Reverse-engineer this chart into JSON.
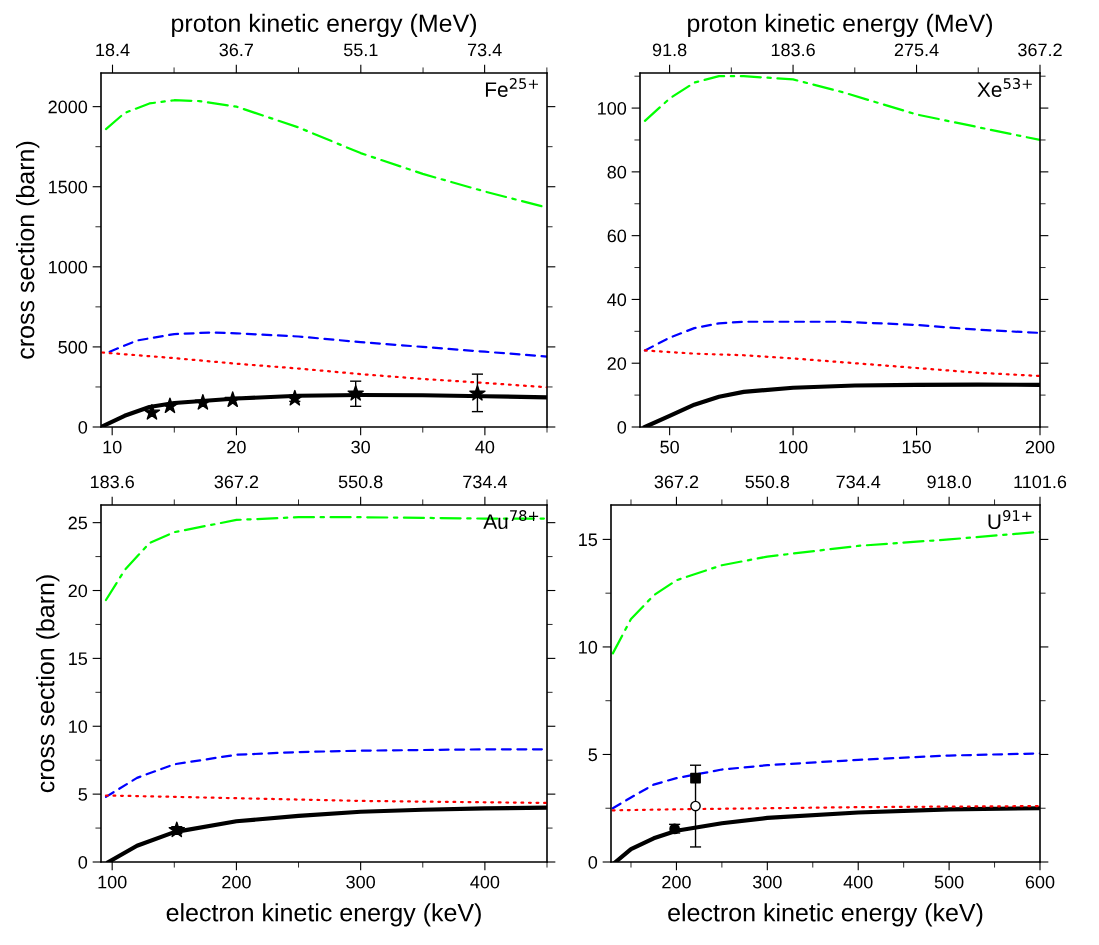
{
  "chart_data": [
    {
      "type": "line",
      "x2label": "proton kinetic energy (MeV)",
      "ylabel": "cross section (barn)",
      "annotations": [
        "Fe$^{25+}$"
      ],
      "xlim": [
        9.1,
        45
      ],
      "xticks": [
        10,
        {
          "value": 15,
          "label": null
        },
        20,
        {
          "value": 25,
          "label": null
        },
        30,
        {
          "value": 35,
          "label": null
        },
        40,
        {
          "value": 45,
          "label": null
        }
      ],
      "x2lim": [
        16.7,
        82.62
      ],
      "x2ticks": [
        18.4,
        {
          "value": 27.5,
          "label": null
        },
        36.7,
        {
          "value": 45.9,
          "label": null
        },
        55.1,
        {
          "value": 64.3,
          "label": null
        },
        73.4,
        {
          "value": 82.6,
          "label": null
        }
      ],
      "ylim": [
        0,
        2210
      ],
      "yticks": [
        0,
        {
          "value": 250,
          "label": null
        },
        500,
        {
          "value": 750,
          "label": null
        },
        1000,
        {
          "value": 1250,
          "label": null
        },
        1500,
        {
          "value": 1750,
          "label": null
        },
        2000
      ],
      "series": [
        {
          "color": "#00ff00",
          "line_style": "dashdot",
          "x": [
            9.5,
            11,
            13,
            15,
            17,
            20,
            25,
            30,
            35,
            40,
            45
          ],
          "values": [
            1860,
            1960,
            2020,
            2040,
            2035,
            2000,
            1870,
            1710,
            1580,
            1470,
            1370
          ]
        },
        {
          "color": "#0000ff",
          "line_style": "dashed",
          "x": [
            9.8,
            12,
            15,
            18,
            20,
            25,
            30,
            35,
            40,
            45
          ],
          "values": [
            470,
            540,
            580,
            590,
            585,
            565,
            530,
            500,
            470,
            440
          ]
        },
        {
          "color": "#ff0000",
          "line_style": "dotted",
          "x": [
            9.2,
            15,
            20,
            25,
            30,
            35,
            40,
            45
          ],
          "values": [
            465,
            430,
            395,
            365,
            330,
            300,
            275,
            248
          ]
        },
        {
          "color": "#000000",
          "line_style": "solid",
          "x": [
            9.1,
            11,
            13,
            15,
            20,
            25,
            30,
            35,
            40,
            45
          ],
          "values": [
            0,
            70,
            125,
            150,
            178,
            195,
            200,
            198,
            192,
            185
          ]
        },
        {
          "type": "scatter",
          "marker": "star",
          "color": "#000000",
          "x": [
            13.2,
            14.65,
            17.3,
            19.7,
            24.7,
            29.6,
            39.4
          ],
          "values": [
            90,
            131,
            152,
            169,
            178,
            209,
            209
          ],
          "errors": [
            null,
            null,
            null,
            null,
            [
              160,
              198
            ],
            [
              129,
              286
            ],
            [
              96,
              330
            ]
          ]
        }
      ]
    },
    {
      "type": "line",
      "x2label": "proton kinetic energy (MeV)",
      "annotations": [
        "Xe$^{53+}$"
      ],
      "xlim": [
        38,
        200
      ],
      "xticks": [
        50,
        {
          "value": 75,
          "label": null
        },
        100,
        {
          "value": 125,
          "label": null
        },
        150,
        {
          "value": 175,
          "label": null
        },
        200
      ],
      "x2lim": [
        69.8,
        367.2
      ],
      "x2ticks": [
        91.8,
        {
          "value": 137.7,
          "label": null
        },
        183.6,
        {
          "value": 229.5,
          "label": null
        },
        275.4,
        {
          "value": 321.3,
          "label": null
        },
        367.2
      ],
      "ylim": [
        0,
        111
      ],
      "yticks": [
        0,
        {
          "value": 10,
          "label": null
        },
        20,
        {
          "value": 30,
          "label": null
        },
        40,
        {
          "value": 50,
          "label": null
        },
        60,
        {
          "value": 70,
          "label": null
        },
        80,
        {
          "value": 90,
          "label": null
        },
        100,
        {
          "value": 110,
          "label": null
        }
      ],
      "series": [
        {
          "color": "#00ff00",
          "line_style": "dashdot",
          "x": [
            40,
            50,
            60,
            70,
            80,
            100,
            120,
            150,
            175,
            200
          ],
          "values": [
            96,
            103,
            108,
            110,
            110,
            109,
            105,
            98,
            94,
            90
          ]
        },
        {
          "color": "#0000ff",
          "line_style": "dashed",
          "x": [
            40,
            50,
            60,
            70,
            80,
            100,
            120,
            150,
            175,
            200
          ],
          "values": [
            24,
            28,
            31,
            32.5,
            33,
            33,
            33,
            32,
            30.5,
            29.5
          ]
        },
        {
          "color": "#ff0000",
          "line_style": "dotted",
          "x": [
            40,
            60,
            80,
            100,
            125,
            150,
            175,
            200
          ],
          "values": [
            24,
            23,
            22.5,
            21.5,
            20,
            18.5,
            17,
            16
          ]
        },
        {
          "color": "#000000",
          "line_style": "solid",
          "x": [
            40,
            50,
            60,
            70,
            80,
            100,
            125,
            150,
            175,
            200
          ],
          "values": [
            0,
            3.5,
            7,
            9.5,
            11,
            12.3,
            13,
            13.2,
            13.3,
            13.2
          ]
        }
      ]
    },
    {
      "type": "line",
      "xlabel": "electron kinetic energy (keV)",
      "ylabel": "cross section (barn)",
      "annotations": [
        "Au$^{78+}$"
      ],
      "xlim": [
        91,
        450
      ],
      "xticks": [
        100,
        {
          "value": 150,
          "label": null
        },
        200,
        {
          "value": 250,
          "label": null
        },
        300,
        {
          "value": 350,
          "label": null
        },
        400,
        {
          "value": 450,
          "label": null
        }
      ],
      "x2lim": [
        167.1,
        826.2
      ],
      "x2ticks": [
        183.6,
        {
          "value": 275.4,
          "label": null
        },
        367.2,
        {
          "value": 459,
          "label": null
        },
        550.8,
        {
          "value": 642.6,
          "label": null
        },
        734.4,
        {
          "value": 826.2,
          "label": null
        }
      ],
      "ylim": [
        0,
        26.3
      ],
      "yticks": [
        0,
        {
          "value": 2.5,
          "label": null
        },
        5,
        {
          "value": 7.5,
          "label": null
        },
        10,
        {
          "value": 12.5,
          "label": null
        },
        15,
        {
          "value": 17.5,
          "label": null
        },
        20,
        {
          "value": 22.5,
          "label": null
        },
        25
      ],
      "series": [
        {
          "color": "#00ff00",
          "line_style": "dashdot",
          "x": [
            95,
            110,
            130,
            150,
            200,
            250,
            300,
            350,
            400,
            450
          ],
          "values": [
            19.3,
            21.5,
            23.5,
            24.3,
            25.2,
            25.4,
            25.4,
            25.35,
            25.3,
            25.3
          ]
        },
        {
          "color": "#0000ff",
          "line_style": "dashed",
          "x": [
            95,
            120,
            150,
            200,
            250,
            300,
            400,
            450
          ],
          "values": [
            4.8,
            6.2,
            7.2,
            7.9,
            8.1,
            8.2,
            8.3,
            8.3
          ]
        },
        {
          "color": "#ff0000",
          "line_style": "dotted",
          "x": [
            95,
            150,
            200,
            300,
            400,
            450
          ],
          "values": [
            4.9,
            4.8,
            4.7,
            4.5,
            4.4,
            4.35
          ]
        },
        {
          "color": "#000000",
          "line_style": "solid",
          "x": [
            97,
            120,
            150,
            200,
            250,
            300,
            350,
            400,
            450
          ],
          "values": [
            0,
            1.2,
            2.2,
            3.0,
            3.4,
            3.7,
            3.85,
            3.95,
            4.0
          ]
        },
        {
          "type": "scatter",
          "marker": "star",
          "color": "#000000",
          "x": [
            152
          ],
          "values": [
            2.35
          ],
          "errors": [
            [
              2.1,
              2.6
            ]
          ]
        }
      ]
    },
    {
      "type": "line",
      "xlabel": "electron kinetic energy (keV)",
      "annotations": [
        "U$^{91+}$"
      ],
      "xlim": [
        128,
        600
      ],
      "xticks": [
        {
          "value": 150,
          "label": null
        },
        200,
        {
          "value": 250,
          "label": null
        },
        300,
        {
          "value": 350,
          "label": null
        },
        400,
        {
          "value": 450,
          "label": null
        },
        500,
        {
          "value": 550,
          "label": null
        },
        600
      ],
      "x2lim": [
        235.0,
        1101.6
      ],
      "x2ticks": [
        {
          "value": 275.4,
          "label": null
        },
        367.2,
        {
          "value": 459,
          "label": null
        },
        550.8,
        {
          "value": 642.6,
          "label": null
        },
        734.4,
        {
          "value": 826.2,
          "label": null
        },
        {
          "value": 918.0,
          "label": "918.0"
        },
        {
          "value": 1009.8,
          "label": null
        },
        1101.6
      ],
      "ylim": [
        0,
        16.6
      ],
      "yticks": [
        0,
        {
          "value": 2.5,
          "label": null
        },
        5,
        {
          "value": 7.5,
          "label": null
        },
        10,
        {
          "value": 12.5,
          "label": null
        },
        15
      ],
      "series": [
        {
          "color": "#00ff00",
          "line_style": "dashdot",
          "x": [
            130,
            150,
            175,
            200,
            250,
            300,
            400,
            500,
            600
          ],
          "values": [
            9.7,
            11.3,
            12.4,
            13.1,
            13.8,
            14.2,
            14.7,
            15.0,
            15.35
          ]
        },
        {
          "color": "#0000ff",
          "line_style": "dashed",
          "x": [
            130,
            150,
            175,
            200,
            250,
            300,
            400,
            500,
            600
          ],
          "values": [
            2.5,
            3.0,
            3.6,
            3.9,
            4.3,
            4.5,
            4.75,
            4.95,
            5.05
          ]
        },
        {
          "color": "#ff0000",
          "line_style": "dotted",
          "x": [
            130,
            200,
            300,
            400,
            600
          ],
          "values": [
            2.4,
            2.45,
            2.5,
            2.55,
            2.6
          ]
        },
        {
          "color": "#000000",
          "line_style": "solid",
          "x": [
            133,
            150,
            175,
            200,
            250,
            300,
            400,
            500,
            600
          ],
          "values": [
            0,
            0.6,
            1.1,
            1.45,
            1.8,
            2.05,
            2.3,
            2.45,
            2.5
          ]
        },
        {
          "type": "scatter",
          "marker": "circle",
          "color": "#000000",
          "x": [
            198
          ],
          "values": [
            1.54
          ],
          "errors": [
            [
              1.35,
              1.75
            ]
          ]
        },
        {
          "type": "scatter",
          "marker": "square",
          "color": "#000000",
          "x": [
            221
          ],
          "values": [
            3.9
          ]
        },
        {
          "type": "scatter",
          "marker": "circle",
          "color": "#ffffff",
          "x": [
            221
          ],
          "values": [
            2.6
          ],
          "errors": [
            [
              0.7,
              4.5
            ]
          ]
        }
      ]
    }
  ]
}
